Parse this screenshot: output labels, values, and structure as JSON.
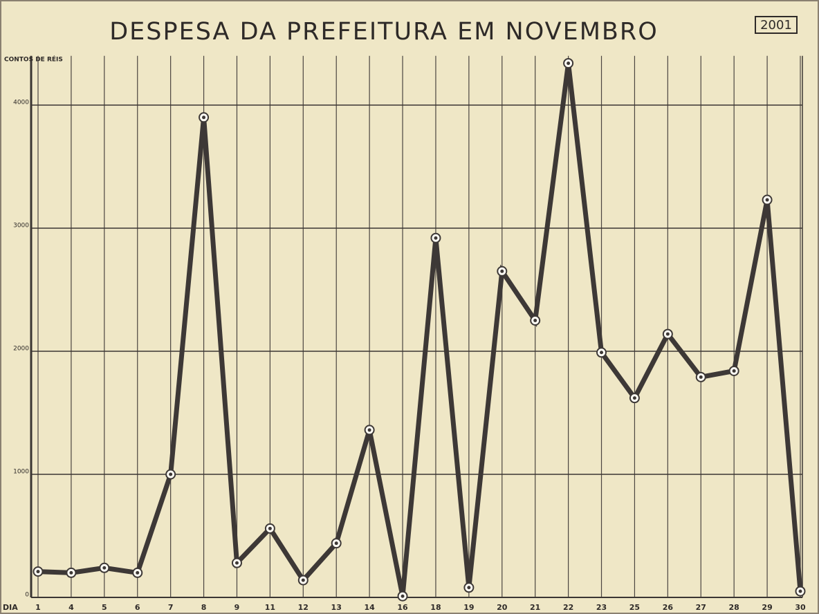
{
  "chart_data": {
    "type": "line",
    "title": "DESPESA DA PREFEITURA EM NOVEMBRO",
    "badge": "2001",
    "y_label": "CONTOS DE RÉIS",
    "x_label": "DIA",
    "categories": [
      "1",
      "4",
      "5",
      "6",
      "7",
      "8",
      "9",
      "11",
      "12",
      "13",
      "14",
      "16",
      "18",
      "19",
      "20",
      "21",
      "22",
      "23",
      "25",
      "26",
      "27",
      "28",
      "29",
      "30"
    ],
    "values": [
      210,
      200,
      240,
      200,
      1000,
      3900,
      280,
      560,
      140,
      440,
      1360,
      10,
      2920,
      80,
      2650,
      2250,
      4340,
      1990,
      1620,
      2140,
      1790,
      1840,
      3230,
      50
    ],
    "color": "#3d3836",
    "ylim": [
      0,
      4400
    ],
    "yticks": [
      0,
      1000,
      2000,
      3000,
      4000
    ],
    "grid": true
  }
}
